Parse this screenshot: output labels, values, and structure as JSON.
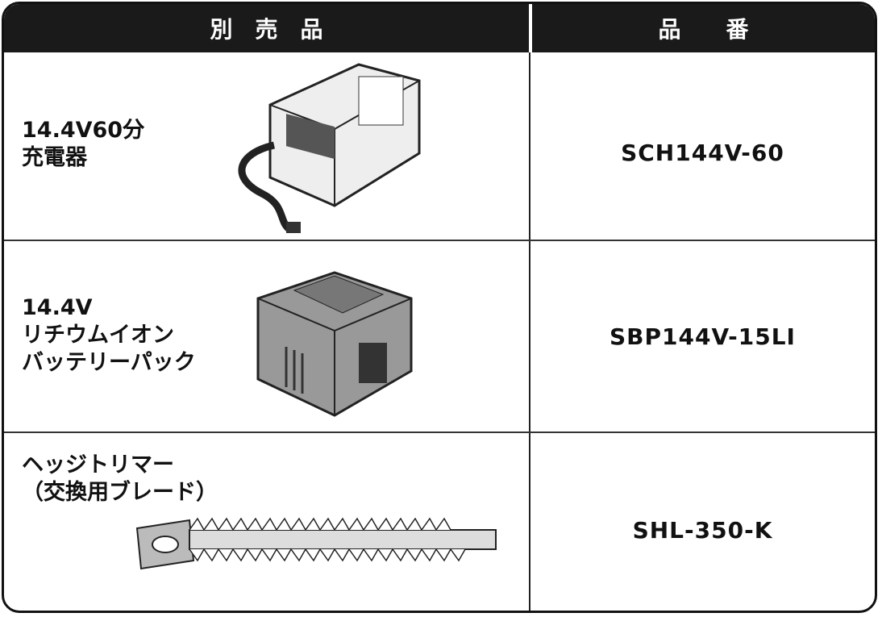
{
  "table": {
    "header": [
      "別　売　品",
      "品　　番"
    ],
    "rows": [
      {
        "name": [
          "14.4V60分",
          "充電器"
        ],
        "part_number": "SCH144V-60"
      },
      {
        "name": [
          "14.4V",
          "リチウムイオン",
          "バッテリーパック"
        ],
        "part_number": "SBP144V-15LI"
      },
      {
        "name": [
          "ヘッジトリマー",
          "（交換用ブレード）"
        ],
        "part_number": "SHL-350-K"
      }
    ]
  }
}
